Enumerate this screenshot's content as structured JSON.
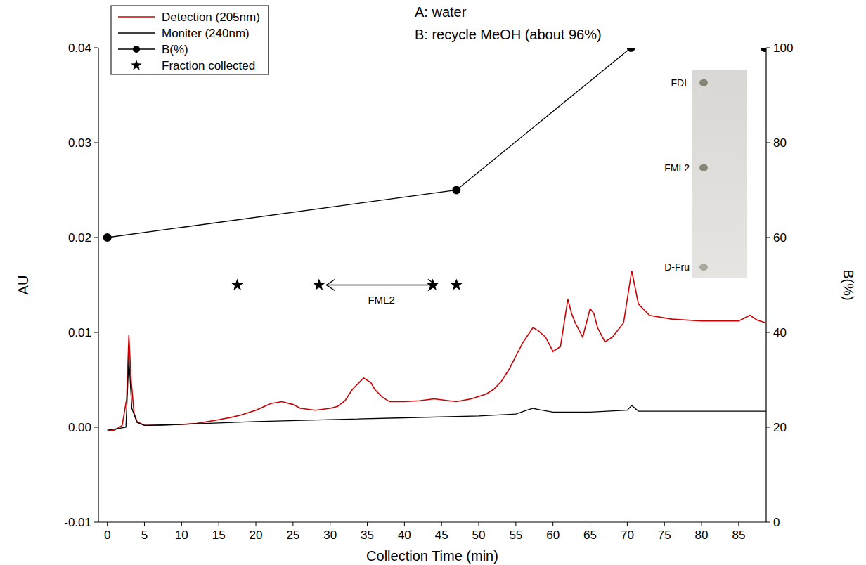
{
  "chart_data": {
    "type": "line",
    "x_label": "Collection Time (min)",
    "y_label": "AU",
    "y2_label": "B(%)",
    "xlim": [
      -1.2,
      88.7
    ],
    "ylim": [
      -0.01,
      0.04
    ],
    "y2lim": [
      0,
      100
    ],
    "xticks": [
      0,
      5,
      10,
      15,
      20,
      25,
      30,
      35,
      40,
      45,
      50,
      55,
      60,
      65,
      70,
      75,
      80,
      85
    ],
    "yticks": [
      -0.01,
      {
        "value": 0,
        "label": "0.00"
      },
      0.01,
      0.02,
      0.03,
      0.04
    ],
    "y2ticks": [
      0,
      20,
      40,
      60,
      80,
      100
    ],
    "grid": false,
    "legend": "upper left",
    "annotations": [
      {
        "text": "A: water"
      },
      {
        "text": "B: recycle MeOH (about 96%)"
      }
    ],
    "series": [
      {
        "name": "Detection (205nm)",
        "color": "#cc0000",
        "line_style": "solid",
        "x": [
          0,
          1,
          2,
          2.6,
          2.9,
          3.2,
          3.6,
          4,
          5,
          7,
          10,
          12,
          15,
          17,
          18,
          20,
          22,
          23.5,
          25,
          26,
          28,
          30,
          31,
          32,
          33,
          34.5,
          35.5,
          36,
          37,
          38,
          40,
          42,
          44,
          46,
          47,
          49,
          51,
          52,
          53,
          54,
          55,
          56,
          57.3,
          58,
          59,
          60,
          61,
          62,
          62.5,
          63,
          64,
          65,
          65.5,
          66,
          67,
          68,
          69,
          69.5,
          70.6,
          71.5,
          73,
          76,
          80,
          85,
          86.5,
          87.5,
          88.7
        ],
        "values": [
          -0.0004,
          -0.0003,
          0.0002,
          0.003,
          0.0097,
          0.005,
          0.0015,
          0.0006,
          0.0002,
          0.0002,
          0.0003,
          0.0004,
          0.0008,
          0.0011,
          0.0013,
          0.0018,
          0.0025,
          0.0027,
          0.0024,
          0.002,
          0.0018,
          0.002,
          0.0022,
          0.0028,
          0.004,
          0.0052,
          0.0047,
          0.004,
          0.0032,
          0.0027,
          0.0027,
          0.0028,
          0.003,
          0.0028,
          0.0027,
          0.003,
          0.0035,
          0.004,
          0.0048,
          0.006,
          0.0075,
          0.009,
          0.0105,
          0.0102,
          0.0095,
          0.008,
          0.0085,
          0.0135,
          0.012,
          0.011,
          0.0095,
          0.0125,
          0.012,
          0.0105,
          0.009,
          0.0095,
          0.0105,
          0.011,
          0.0165,
          0.013,
          0.0118,
          0.0114,
          0.0112,
          0.0112,
          0.0118,
          0.0113,
          0.011
        ]
      },
      {
        "name": "Moniter (240nm)",
        "color": "#000000",
        "line_style": "solid",
        "x": [
          0,
          1,
          2.5,
          2.9,
          3.3,
          4,
          5,
          10,
          20,
          30,
          40,
          50,
          55,
          56.5,
          57.3,
          58.5,
          60,
          65,
          70,
          70.6,
          71.5,
          80,
          88.7
        ],
        "values": [
          -0.0003,
          -0.0002,
          0,
          0.0073,
          0.002,
          0.0005,
          0.0002,
          0.0003,
          0.0006,
          0.0008,
          0.001,
          0.0012,
          0.0014,
          0.0018,
          0.002,
          0.0018,
          0.0016,
          0.0016,
          0.0018,
          0.0023,
          0.0017,
          0.0017,
          0.0017
        ]
      },
      {
        "name": "B(%)",
        "color": "#000000",
        "axis": "y2",
        "marker": "circle",
        "line_style": "solid",
        "x": [
          0,
          47,
          70.5,
          88.5
        ],
        "values": [
          60,
          70,
          100,
          100
        ]
      },
      {
        "name": "Fraction collected",
        "type": "scatter",
        "color": "#000000",
        "marker": "star",
        "x": [
          17.5,
          28.5,
          43.8,
          47
        ],
        "values": [
          0.015,
          0.015,
          0.015,
          0.015
        ]
      }
    ],
    "range_annotation": {
      "text": "FML2",
      "x": [
        29.5,
        44.3
      ],
      "y": 0.015
    },
    "inset": {
      "labels": [
        "FDL",
        "FML2",
        "D-Fru"
      ]
    }
  }
}
